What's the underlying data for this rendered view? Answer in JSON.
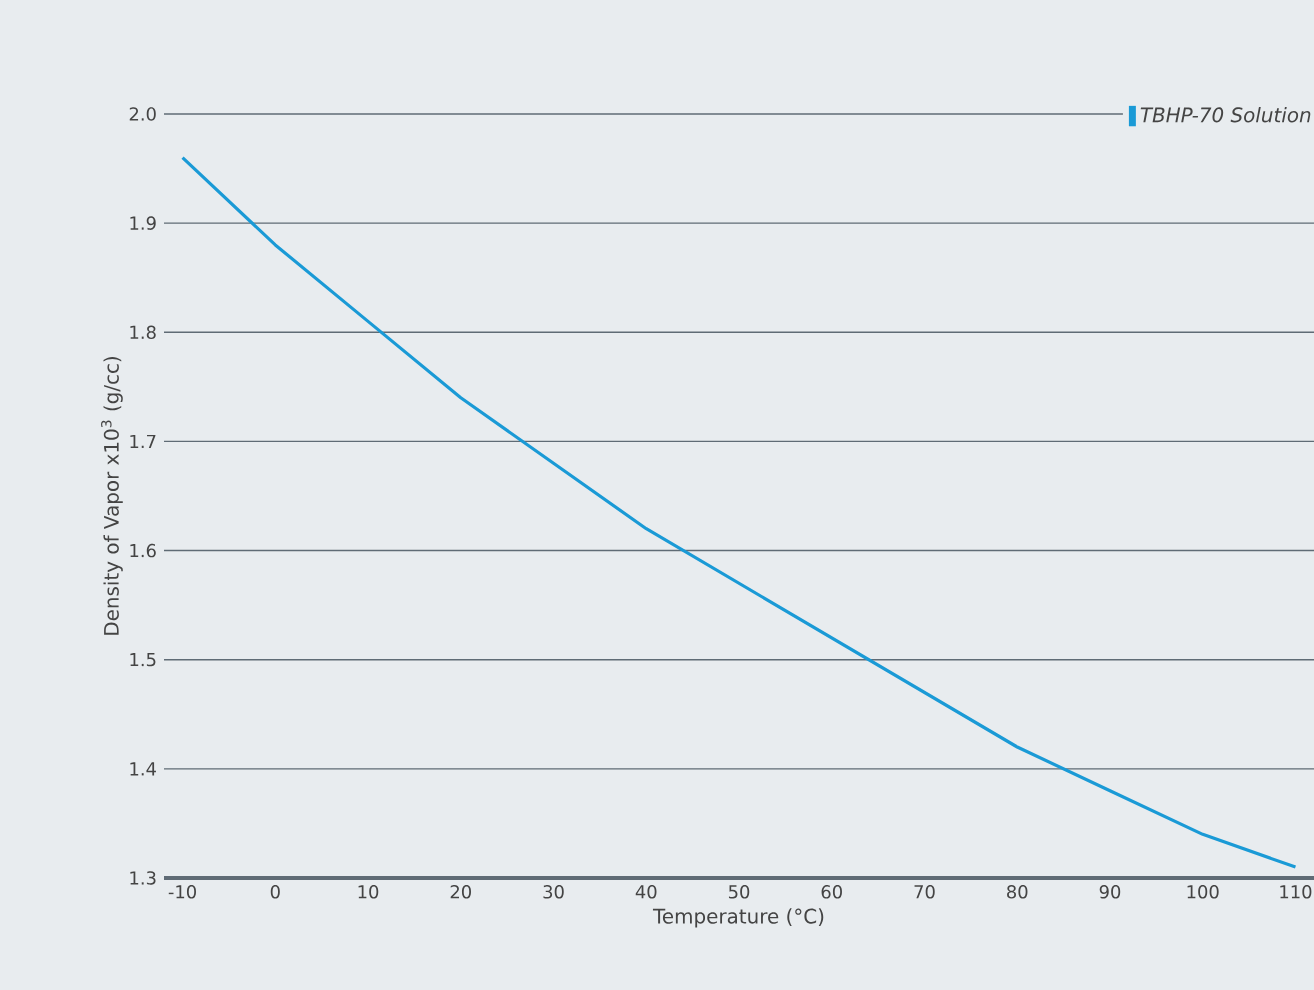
{
  "chart_data": {
    "type": "line",
    "xlabel": "Temperature (°C)",
    "ylabel": "Density of Vapor x10$^{3}$ (g/cc)",
    "x": [
      -10,
      0,
      10,
      20,
      30,
      40,
      50,
      60,
      70,
      80,
      90,
      100,
      110
    ],
    "series": [
      {
        "name": "TBHP-70 Solution",
        "color": "#1a9ad6",
        "values": [
          1.96,
          1.88,
          1.81,
          1.74,
          1.68,
          1.62,
          1.57,
          1.52,
          1.47,
          1.42,
          1.38,
          1.34,
          1.31
        ]
      }
    ],
    "xlim": [
      -12,
      112
    ],
    "ylim": [
      1.3,
      2.0
    ],
    "xticks": [
      -10,
      0,
      10,
      20,
      30,
      40,
      50,
      60,
      70,
      80,
      90,
      100,
      110
    ],
    "yticks": [
      {
        "value": 1.3,
        "label": "1.3"
      },
      {
        "value": 1.4,
        "label": "1.4"
      },
      {
        "value": 1.5,
        "label": "1.5"
      },
      {
        "value": 1.6,
        "label": "1.6"
      },
      {
        "value": 1.7,
        "label": "1.7"
      },
      {
        "value": 1.8,
        "label": "1.8"
      },
      {
        "value": 1.9,
        "label": "1.9"
      },
      {
        "value": 2.0,
        "label": "2.0"
      }
    ],
    "grid": "y",
    "legend": "top right",
    "marker": "none",
    "line_style": "solid"
  }
}
